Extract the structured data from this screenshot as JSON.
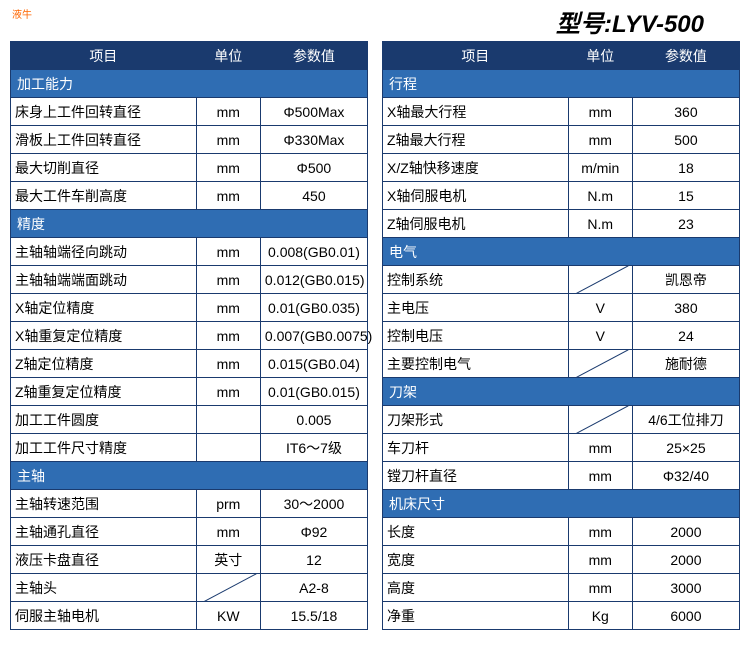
{
  "watermark": "液牛",
  "title_prefix": "型号:",
  "title_model": "LYV-500",
  "header_param": "项目",
  "header_unit": "单位",
  "header_value": "参数值",
  "left": [
    {
      "type": "section",
      "label": "加工能力"
    },
    {
      "type": "row",
      "param": "床身上工件回转直径",
      "unit": "mm",
      "val": "Φ500Max"
    },
    {
      "type": "row",
      "param": "滑板上工件回转直径",
      "unit": "mm",
      "val": "Φ330Max"
    },
    {
      "type": "row",
      "param": "最大切削直径",
      "unit": "mm",
      "val": "Φ500"
    },
    {
      "type": "row",
      "param": "最大工件车削高度",
      "unit": "mm",
      "val": "450"
    },
    {
      "type": "section",
      "label": "精度"
    },
    {
      "type": "row",
      "param": "主轴轴端径向跳动",
      "unit": "mm",
      "val": "0.008(GB0.01)"
    },
    {
      "type": "row",
      "param": "主轴轴端端面跳动",
      "unit": "mm",
      "val": "0.012(GB0.015)"
    },
    {
      "type": "row",
      "param": "X轴定位精度",
      "unit": "mm",
      "val": "0.01(GB0.035)"
    },
    {
      "type": "row",
      "param": "X轴重复定位精度",
      "unit": "mm",
      "val": "0.007(GB0.0075)"
    },
    {
      "type": "row",
      "param": "Z轴定位精度",
      "unit": "mm",
      "val": "0.015(GB0.04)"
    },
    {
      "type": "row",
      "param": "Z轴重复定位精度",
      "unit": "mm",
      "val": "0.01(GB0.015)"
    },
    {
      "type": "row",
      "param": "加工工件圆度",
      "unit": "",
      "val": "0.005"
    },
    {
      "type": "row",
      "param": "加工工件尺寸精度",
      "unit": "",
      "val": "IT6～7级"
    },
    {
      "type": "section",
      "label": "主轴"
    },
    {
      "type": "row",
      "param": "主轴转速范围",
      "unit": "prm",
      "val": "30～2000"
    },
    {
      "type": "row",
      "param": "主轴通孔直径",
      "unit": "mm",
      "val": "Φ92"
    },
    {
      "type": "row",
      "param": "液压卡盘直径",
      "unit": "英寸",
      "val": "12"
    },
    {
      "type": "row",
      "param": "主轴头",
      "unit": "DIAG",
      "val": "A2-8"
    },
    {
      "type": "row",
      "param": "伺服主轴电机",
      "unit": "KW",
      "val": "15.5/18"
    }
  ],
  "right": [
    {
      "type": "section",
      "label": "行程"
    },
    {
      "type": "row",
      "param": "X轴最大行程",
      "unit": "mm",
      "val": "360"
    },
    {
      "type": "row",
      "param": "Z轴最大行程",
      "unit": "mm",
      "val": "500"
    },
    {
      "type": "row",
      "param": "X/Z轴快移速度",
      "unit": "m/min",
      "val": "18"
    },
    {
      "type": "row",
      "param": "X轴伺服电机",
      "unit": "N.m",
      "val": "15"
    },
    {
      "type": "row",
      "param": "Z轴伺服电机",
      "unit": "N.m",
      "val": "23"
    },
    {
      "type": "section",
      "label": "电气"
    },
    {
      "type": "row",
      "param": "控制系统",
      "unit": "DIAG",
      "val": "凯恩帝"
    },
    {
      "type": "row",
      "param": "主电压",
      "unit": "V",
      "val": "380"
    },
    {
      "type": "row",
      "param": "控制电压",
      "unit": "V",
      "val": "24"
    },
    {
      "type": "row",
      "param": "主要控制电气",
      "unit": "DIAG",
      "val": "施耐德"
    },
    {
      "type": "section",
      "label": "刀架"
    },
    {
      "type": "row",
      "param": "刀架形式",
      "unit": "DIAG",
      "val": "4/6工位排刀"
    },
    {
      "type": "row",
      "param": "车刀杆",
      "unit": "mm",
      "val": "25×25"
    },
    {
      "type": "row",
      "param": "镗刀杆直径",
      "unit": "mm",
      "val": "Φ32/40"
    },
    {
      "type": "section",
      "label": "机床尺寸"
    },
    {
      "type": "row",
      "param": "长度",
      "unit": "mm",
      "val": "2000"
    },
    {
      "type": "row",
      "param": "宽度",
      "unit": "mm",
      "val": "2000"
    },
    {
      "type": "row",
      "param": "高度",
      "unit": "mm",
      "val": "3000"
    },
    {
      "type": "row",
      "param": "净重",
      "unit": "Kg",
      "val": "6000"
    }
  ]
}
